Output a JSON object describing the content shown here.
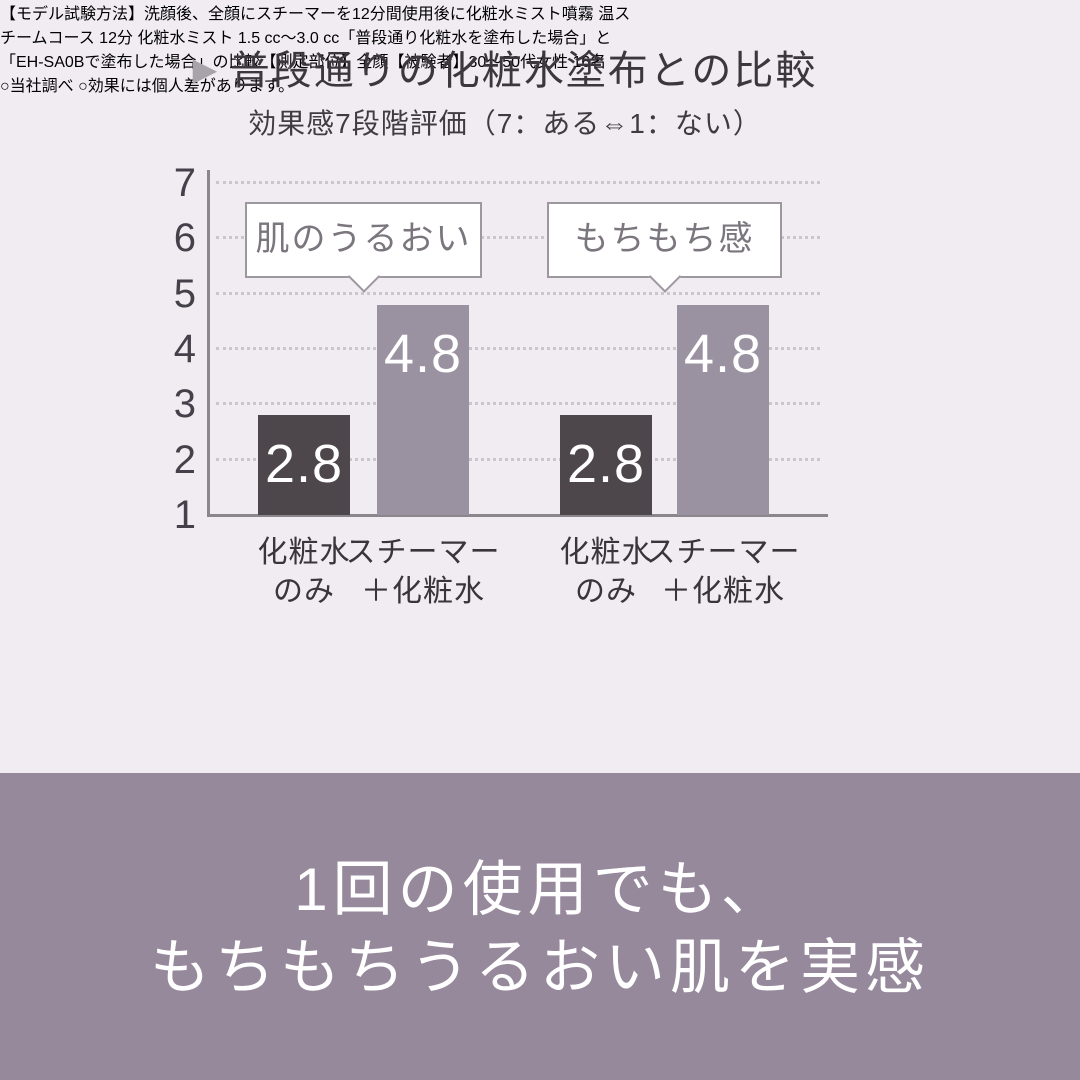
{
  "header": {
    "marker": "▶",
    "title": "普段通りの化粧水塗布との比較",
    "subtitle": "効果感7段階評価（7：ある⇔1：ない）"
  },
  "chart_data": {
    "type": "bar",
    "title": "普段通りの化粧水塗布との比較",
    "subtitle": "効果感7段階評価（7：ある⇔1：ない）",
    "ylim": [
      1,
      7
    ],
    "yticks": [
      7,
      6,
      5,
      4,
      3,
      2,
      1
    ],
    "grid": "horizontal-dotted",
    "legend_position": "none",
    "categories": [
      "化粧水のみ",
      "スチーマー＋化粧水"
    ],
    "category_lines": [
      [
        "化粧水",
        "のみ"
      ],
      [
        "スチーマー",
        "＋化粧水"
      ]
    ],
    "bar_colors": [
      "#4d464a",
      "#9a91a1"
    ],
    "groups": [
      {
        "label": "肌のうるおい",
        "values": [
          2.8,
          4.8
        ]
      },
      {
        "label": "もちもち感",
        "values": [
          2.8,
          4.8
        ]
      }
    ]
  },
  "footnote": {
    "lines": [
      "【モデル試験方法】洗顔後、全顔にスチーマーを12分間使用後に化粧水ミスト噴霧 温ス",
      "チームコース 12分 化粧水ミスト 1.5 cc〜3.0 cc「普段通り化粧水を塗布した場合」と",
      "「EH-SA0Bで塗布した場合」の比較【測定部位】全顔【被験者】30〜50代女性 16名",
      "○当社調べ ○効果には個人差があります。"
    ]
  },
  "banner": {
    "lines": [
      "1回の使用でも、",
      "もちもちうるおい肌を実感"
    ]
  },
  "colors": {
    "background": "#f0ecf2",
    "bar_dark": "#4d464a",
    "bar_purple": "#9a91a1",
    "axis": "#8b868c",
    "gridline": "#cbc5cd",
    "callout_border": "#9d97a0",
    "banner_background": "#97899c",
    "banner_text": "#ffffff",
    "text_dark": "#39353a"
  }
}
